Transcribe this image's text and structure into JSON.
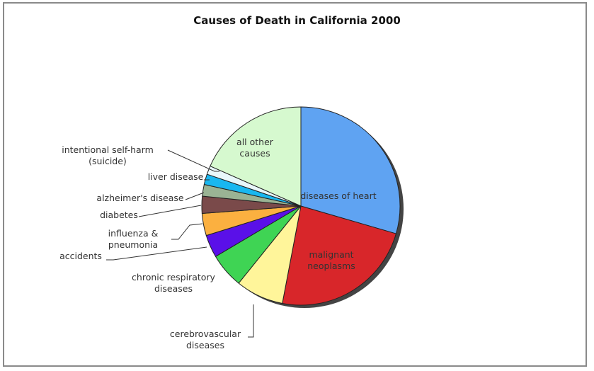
{
  "chart_data": {
    "type": "pie",
    "title": "Causes of Death in California 2000",
    "slices": [
      {
        "label": "diseases of heart",
        "value": 29.5,
        "color": "#5fa3f2"
      },
      {
        "label": "malignant neoplasms",
        "value": 23.5,
        "color": "#d8262a"
      },
      {
        "label": "cerebrovascular diseases",
        "value": 7.8,
        "color": "#fff59a"
      },
      {
        "label": "chronic respiratory diseases",
        "value": 5.7,
        "color": "#3fd454"
      },
      {
        "label": "accidents",
        "value": 3.7,
        "color": "#5a10e8"
      },
      {
        "label": "influenza & pneumonia",
        "value": 3.6,
        "color": "#fbb040"
      },
      {
        "label": "diabetes",
        "value": 2.8,
        "color": "#7a4a4a"
      },
      {
        "label": "alzheimer's disease",
        "value": 1.9,
        "color": "#9ab394"
      },
      {
        "label": "liver disease",
        "value": 1.7,
        "color": "#19b7f0"
      },
      {
        "label": "intentional self-harm (suicide)",
        "value": 1.4,
        "color": "#e8f7fb"
      },
      {
        "label": "all other causes",
        "value": 18.4,
        "color": "#d6f9cf"
      }
    ]
  }
}
